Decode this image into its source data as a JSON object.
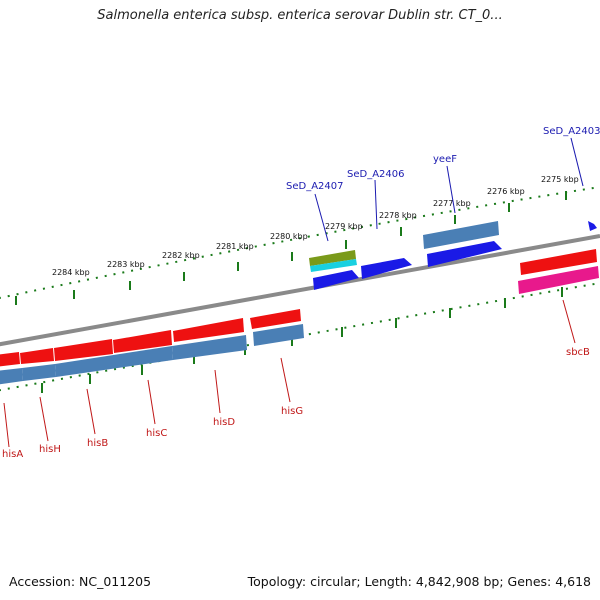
{
  "title": "Salmonella enterica subsp. enterica serovar Dublin str. CT_0...",
  "footer": {
    "accession": "Accession: NC_011205",
    "topology": "Topology: circular; Length: 4,842,908 bp; Genes: 4,618"
  },
  "scale_labels": [
    "2275 kbp",
    "2276 kbp",
    "2277 kbp",
    "2278 kbp",
    "2279 kbp",
    "2280 kbp",
    "2281 kbp",
    "2282 kbp",
    "2283 kbp",
    "2284 kbp"
  ],
  "gene_labels_top": [
    "SeD_A2403",
    "yeeF",
    "SeD_A2406",
    "SeD_A2407"
  ],
  "gene_labels_bottom": [
    "sbcB",
    "hisG",
    "hisD",
    "hisC",
    "hisB",
    "hisH",
    "hisA"
  ],
  "colors": {
    "backbone": "#8a8a8a",
    "gene_red": "#ee1111",
    "gene_blue": "#1a1ae6",
    "gene_steel": "#4a7fb5",
    "gene_magenta": "#e8198c",
    "gene_olive": "#7a9a1a",
    "gene_cyan": "#19d0e0",
    "ticks": "#1a7a1a",
    "label_top": "#1b1bb0",
    "label_bottom": "#c01818"
  }
}
